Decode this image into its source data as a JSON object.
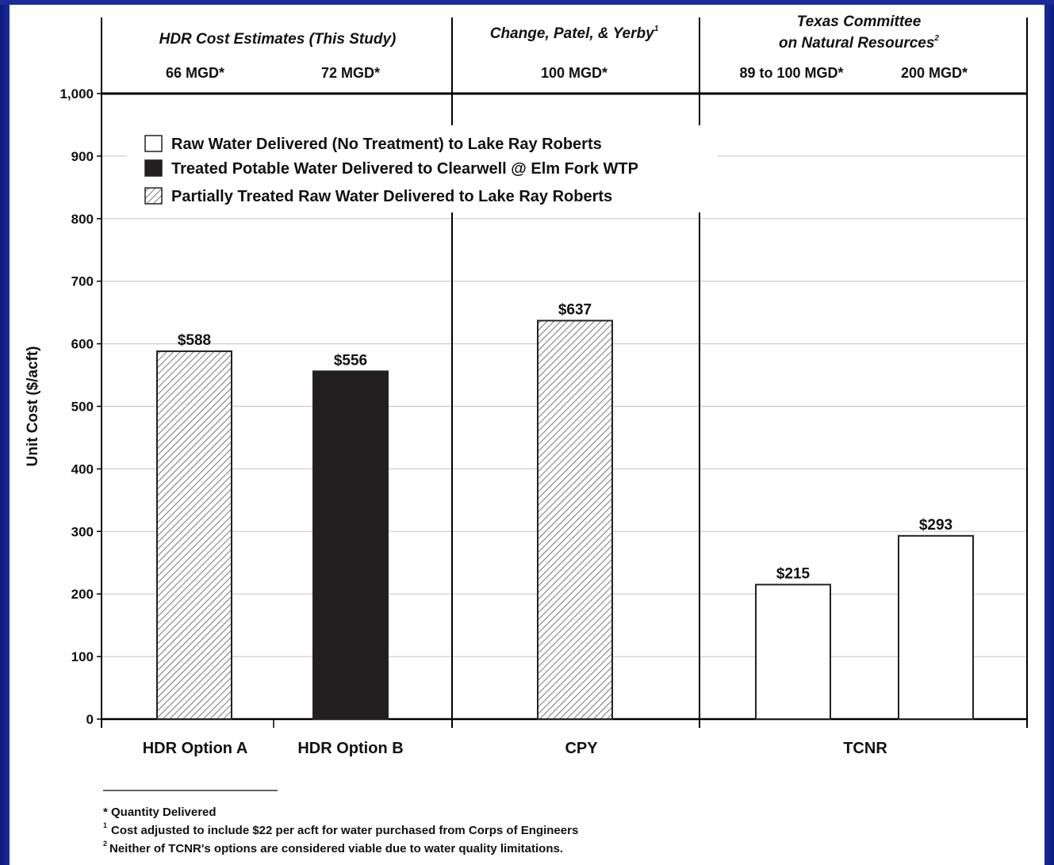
{
  "chart_data": {
    "type": "bar",
    "ylabel": "Unit Cost ($/acft)",
    "ylim": [
      0,
      1000
    ],
    "yticks": [
      "0",
      "100",
      "200",
      "300",
      "400",
      "500",
      "600",
      "700",
      "800",
      "900",
      "1,000"
    ],
    "grid": true,
    "group_headers": [
      {
        "title": "HDR Cost Estimates (This Study)",
        "italic": true
      },
      {
        "title": "Change, Patel, & Yerby",
        "sup": "1",
        "italic": true
      },
      {
        "title_line1": "Texas Committee",
        "title_line2": "on Natural Resources",
        "sup": "2",
        "italic": true
      }
    ],
    "quantities": [
      "66 MGD*",
      "72 MGD*",
      "100 MGD*",
      "89 to 100  MGD*",
      "200 MGD*"
    ],
    "categories": [
      "HDR Option A",
      "HDR Option B",
      "CPY",
      "TCNR"
    ],
    "legend": {
      "placement": "top-left",
      "entries": [
        {
          "label": "Raw Water Delivered (No Treatment) to Lake Ray Roberts",
          "style": "white"
        },
        {
          "label": "Treated Potable Water Delivered to Clearwell @ Elm Fork WTP",
          "style": "black"
        },
        {
          "label": "Partially Treated Raw Water Delivered to Lake Ray Roberts",
          "style": "hatched"
        }
      ]
    },
    "bars": [
      {
        "category": "HDR Option A",
        "value": 588,
        "label": "$588",
        "style": "hatched"
      },
      {
        "category": "HDR Option B",
        "value": 556,
        "label": "$556",
        "style": "black"
      },
      {
        "category": "CPY",
        "value": 637,
        "label": "$637",
        "style": "hatched"
      },
      {
        "category": "TCNR",
        "value": 215,
        "label": "$215",
        "style": "white"
      },
      {
        "category": "TCNR",
        "value": 293,
        "label": "$293",
        "style": "white"
      }
    ],
    "colors": {
      "black_bar": "#231f20",
      "hatch": "#555555",
      "grid": "#cccccc",
      "frame": "#1b2a9a"
    }
  },
  "footnotes": {
    "star": "* Quantity Delivered",
    "note1_sup": "1",
    "note1": "Cost adjusted to include $22 per acft for water purchased from Corps of Engineers",
    "note2_sup": "2",
    "note2": "Neither of TCNR's options are considered viable due to water quality limitations."
  }
}
